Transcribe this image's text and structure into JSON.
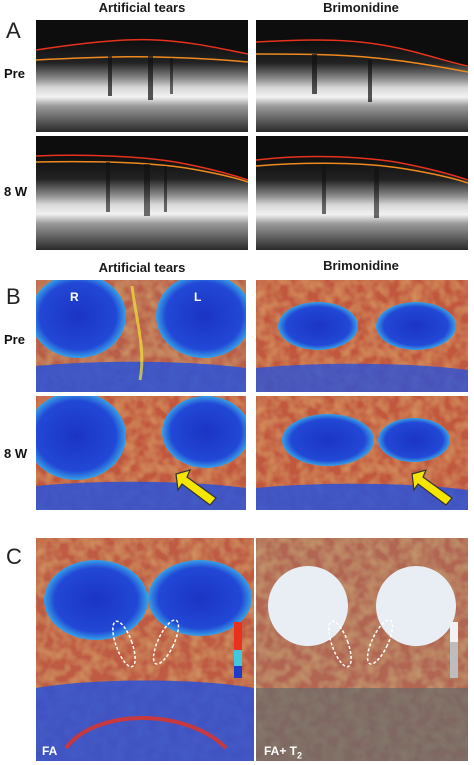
{
  "section_a": {
    "letter": "A",
    "columns": [
      "Artificial tears",
      "Brimonidine"
    ],
    "rows": [
      "Pre",
      "8 W"
    ]
  },
  "section_b": {
    "letter": "B",
    "columns": [
      "Artificial tears",
      "Brimonidine"
    ],
    "rows": [
      "Pre",
      "8 W"
    ],
    "hemisphere_labels": [
      "R",
      "L"
    ]
  },
  "section_c": {
    "letter": "C",
    "panel_labels": [
      "FA",
      "FA+ T",
      "2"
    ]
  },
  "colors": {
    "oct_background": "#1c1c1c",
    "retina_boundary_top": "#e8321e",
    "retina_boundary_bottom": "#f08a1e",
    "fa_low": "#1e3cc8",
    "fa_mid": "#40d2e6",
    "fa_high": "#e83c14",
    "arrow": "#f5e600"
  }
}
